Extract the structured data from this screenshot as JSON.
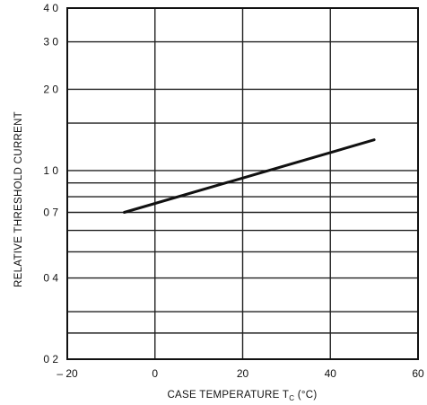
{
  "chart_data": {
    "type": "line",
    "xlabel": "CASE TEMPERATURE T",
    "xlabel_sub": "C",
    "xlabel_unit": " (°C)",
    "ylabel": "RELATIVE THRESHOLD CURRENT",
    "xlim": [
      -20,
      60
    ],
    "ylim": [
      0.2,
      4.0
    ],
    "yscale": "log",
    "grid": true,
    "x_ticks": [
      {
        "value": -20,
        "label": "– 20"
      },
      {
        "value": 0,
        "label": "0"
      },
      {
        "value": 20,
        "label": "20"
      },
      {
        "value": 40,
        "label": "40"
      },
      {
        "value": 60,
        "label": "60"
      }
    ],
    "y_ticks": [
      {
        "value": 0.2,
        "label": "0 2"
      },
      {
        "value": 0.4,
        "label": "0 4"
      },
      {
        "value": 0.7,
        "label": "0 7"
      },
      {
        "value": 1.0,
        "label": "1 0"
      },
      {
        "value": 2.0,
        "label": "2 0"
      },
      {
        "value": 3.0,
        "label": "3 0"
      },
      {
        "value": 4.0,
        "label": "4 0"
      }
    ],
    "y_gridlines": [
      0.2,
      0.25,
      0.3,
      0.4,
      0.5,
      0.6,
      0.7,
      0.8,
      0.9,
      1.0,
      1.5,
      2.0,
      3.0,
      4.0
    ],
    "x_gridlines": [
      -20,
      0,
      20,
      40,
      60
    ],
    "series": [
      {
        "x": [
          -7,
          50
        ],
        "y": [
          0.7,
          1.3
        ]
      }
    ],
    "colors": {
      "line": "#111111",
      "grid": "#222222",
      "frame": "#111111"
    }
  }
}
